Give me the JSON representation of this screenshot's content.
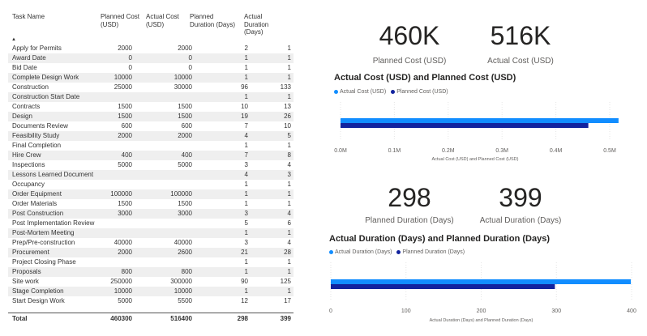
{
  "table": {
    "headers": [
      "Task Name",
      "Planned Cost (USD)",
      "Actual Cost (USD)",
      "Planned Duration (Days)",
      "Actual Duration (Days)"
    ],
    "header_lines": [
      [
        "Task Name"
      ],
      [
        "Planned Cost",
        "(USD)"
      ],
      [
        "Actual Cost",
        "(USD)"
      ],
      [
        "Planned",
        "Duration (Days)"
      ],
      [
        "Actual",
        "Duration",
        "(Days)"
      ]
    ],
    "sort_indicator": "▲",
    "rows": [
      [
        "Apply for Permits",
        "2000",
        "2000",
        "2",
        "1"
      ],
      [
        "Award Date",
        "0",
        "0",
        "1",
        "1"
      ],
      [
        "Bid Date",
        "0",
        "0",
        "1",
        "1"
      ],
      [
        "Complete Design Work",
        "10000",
        "10000",
        "1",
        "1"
      ],
      [
        "Construction",
        "25000",
        "30000",
        "96",
        "133"
      ],
      [
        "Construction Start Date",
        "",
        "",
        "1",
        "1"
      ],
      [
        "Contracts",
        "1500",
        "1500",
        "10",
        "13"
      ],
      [
        "Design",
        "1500",
        "1500",
        "19",
        "26"
      ],
      [
        "Documents Review",
        "600",
        "600",
        "7",
        "10"
      ],
      [
        "Feasibility Study",
        "2000",
        "2000",
        "4",
        "5"
      ],
      [
        "Final Completion",
        "",
        "",
        "1",
        "1"
      ],
      [
        "Hire Crew",
        "400",
        "400",
        "7",
        "8"
      ],
      [
        "Inspections",
        "5000",
        "5000",
        "3",
        "4"
      ],
      [
        "Lessons Learned Document",
        "",
        "",
        "4",
        "3"
      ],
      [
        "Occupancy",
        "",
        "",
        "1",
        "1"
      ],
      [
        "Order Equipment",
        "100000",
        "100000",
        "1",
        "1"
      ],
      [
        "Order Materials",
        "1500",
        "1500",
        "1",
        "1"
      ],
      [
        "Post Construction",
        "3000",
        "3000",
        "3",
        "4"
      ],
      [
        "Post Implementation Review",
        "",
        "",
        "5",
        "6"
      ],
      [
        "Post-Mortem Meeting",
        "",
        "",
        "1",
        "1"
      ],
      [
        "Prep/Pre-construction",
        "40000",
        "40000",
        "3",
        "4"
      ],
      [
        "Procurement",
        "2000",
        "2600",
        "21",
        "28"
      ],
      [
        "Project Closing Phase",
        "",
        "",
        "1",
        "1"
      ],
      [
        "Proposals",
        "800",
        "800",
        "1",
        "1"
      ],
      [
        "Site work",
        "250000",
        "300000",
        "90",
        "125"
      ],
      [
        "Stage Completion",
        "10000",
        "10000",
        "1",
        "1"
      ],
      [
        "Start Design Work",
        "5000",
        "5500",
        "12",
        "17"
      ]
    ],
    "total": [
      "Total",
      "460300",
      "516400",
      "298",
      "399"
    ]
  },
  "cards": {
    "planned_cost": {
      "value": "460K",
      "label": "Planned Cost (USD)"
    },
    "actual_cost": {
      "value": "516K",
      "label": "Actual Cost (USD)"
    },
    "planned_duration": {
      "value": "298",
      "label": "Planned Duration (Days)"
    },
    "actual_duration": {
      "value": "399",
      "label": "Actual Duration (Days)"
    }
  },
  "colors": {
    "actual": "#118dff",
    "planned": "#12239e"
  },
  "chart_data": [
    {
      "type": "bar",
      "orientation": "horizontal",
      "title": "Actual Cost (USD) and Planned Cost (USD)",
      "xlabel": "Actual Cost (USD) and Planned Cost (USD)",
      "series": [
        {
          "name": "Actual Cost (USD)",
          "values": [
            516400
          ]
        },
        {
          "name": "Planned Cost (USD)",
          "values": [
            460300
          ]
        }
      ],
      "xlim": [
        0,
        500000
      ],
      "ticks": [
        0,
        100000,
        200000,
        300000,
        400000,
        500000
      ],
      "tick_labels": [
        "0.0M",
        "0.1M",
        "0.2M",
        "0.3M",
        "0.4M",
        "0.5M"
      ],
      "legend": "top-left"
    },
    {
      "type": "bar",
      "orientation": "horizontal",
      "title": "Actual Duration (Days) and Planned Duration (Days)",
      "xlabel": "Actual Duration (Days) and Planned Duration (Days)",
      "series": [
        {
          "name": "Actual Duration (Days)",
          "values": [
            399
          ]
        },
        {
          "name": "Planned Duration (Days)",
          "values": [
            298
          ]
        }
      ],
      "xlim": [
        0,
        400
      ],
      "ticks": [
        0,
        100,
        200,
        300,
        400
      ],
      "tick_labels": [
        "0",
        "100",
        "200",
        "300",
        "400"
      ],
      "legend": "top-left"
    }
  ]
}
